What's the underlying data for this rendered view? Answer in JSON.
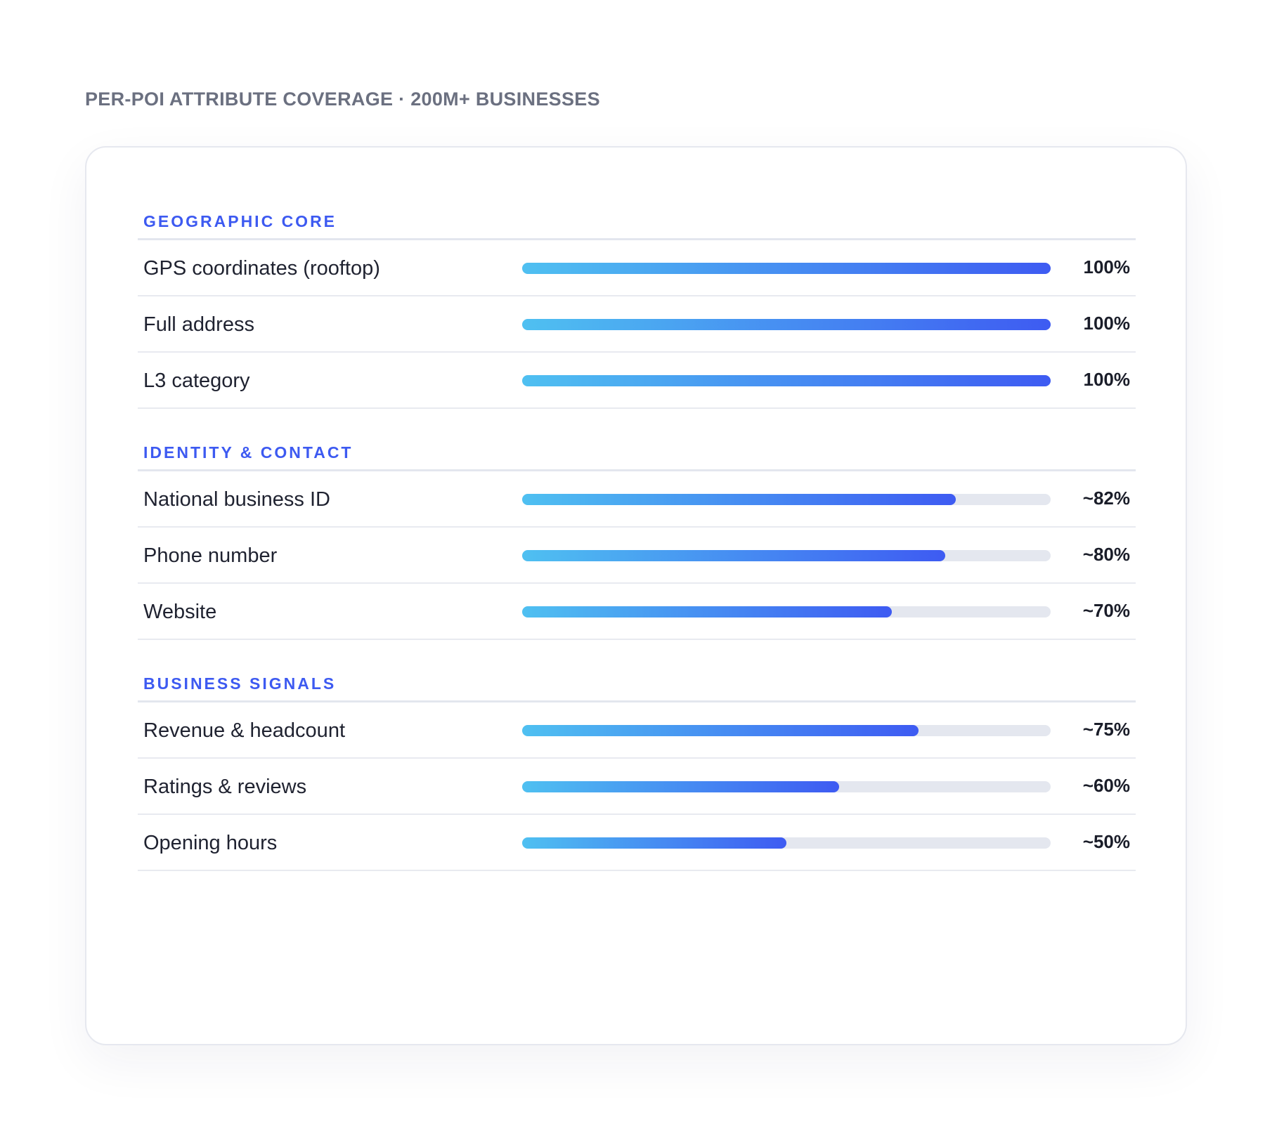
{
  "chart_data": {
    "type": "bar",
    "orientation": "horizontal",
    "title": "PER-POI ATTRIBUTE COVERAGE · 200M+ BUSINESSES",
    "xlim": [
      0,
      100
    ],
    "unit": "%",
    "colors": {
      "fill_start": "#4fc0f1",
      "fill_end": "#3e5bf2",
      "track": "#e4e7ef",
      "group_title": "#3d5af1"
    },
    "groups": [
      {
        "title": "GEOGRAPHIC CORE",
        "items": [
          {
            "label": "GPS coordinates (rooftop)",
            "value": 100,
            "value_label": "100%"
          },
          {
            "label": "Full address",
            "value": 100,
            "value_label": "100%"
          },
          {
            "label": "L3 category",
            "value": 100,
            "value_label": "100%"
          }
        ]
      },
      {
        "title": "IDENTITY & CONTACT",
        "items": [
          {
            "label": "National business ID",
            "value": 82,
            "value_label": "~82%"
          },
          {
            "label": "Phone number",
            "value": 80,
            "value_label": "~80%"
          },
          {
            "label": "Website",
            "value": 70,
            "value_label": "~70%"
          }
        ]
      },
      {
        "title": "BUSINESS SIGNALS",
        "items": [
          {
            "label": "Revenue & headcount",
            "value": 75,
            "value_label": "~75%"
          },
          {
            "label": "Ratings & reviews",
            "value": 60,
            "value_label": "~60%"
          },
          {
            "label": "Opening hours",
            "value": 50,
            "value_label": "~50%"
          }
        ]
      }
    ]
  }
}
